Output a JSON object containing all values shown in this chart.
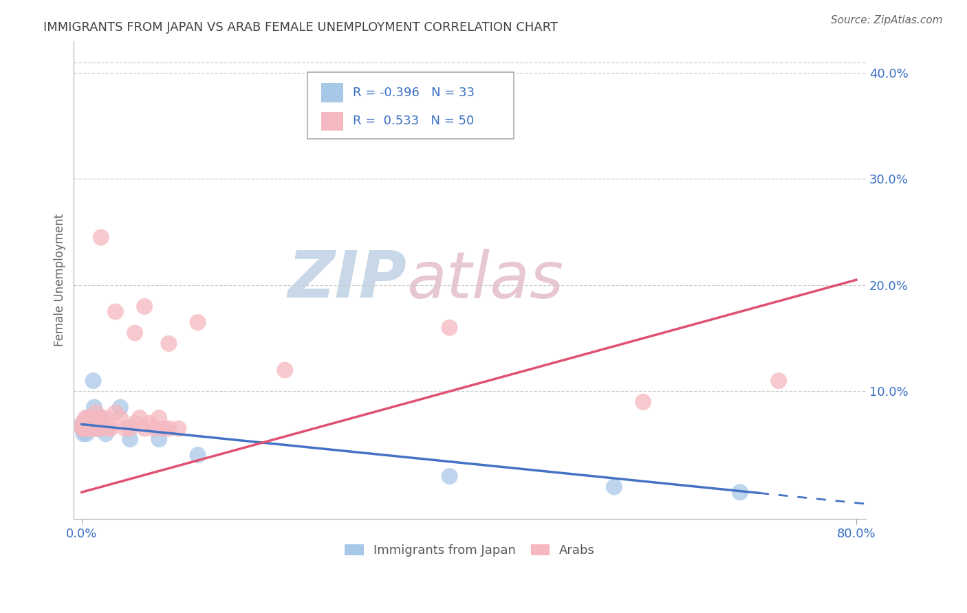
{
  "title": "IMMIGRANTS FROM JAPAN VS ARAB FEMALE UNEMPLOYMENT CORRELATION CHART",
  "source": "Source: ZipAtlas.com",
  "ylabel": "Female Unemployment",
  "R1": "-0.396",
  "N1": "33",
  "R2": "0.533",
  "N2": "50",
  "legend_label1": "Immigrants from Japan",
  "legend_label2": "Arabs",
  "blue_color": "#a8c8e8",
  "pink_color": "#f5b8c0",
  "blue_line_color": "#4472c4",
  "pink_line_color": "#e05070",
  "grid_color": "#cccccc",
  "watermark_zip_color": "#c8d8e8",
  "watermark_atlas_color": "#e8c8d0",
  "text_color": "#3a6fc4",
  "title_color": "#444444",
  "source_color": "#666666",
  "xlim": [
    0.0,
    0.8
  ],
  "ylim": [
    0.0,
    0.42
  ],
  "japan_x": [
    0.001,
    0.001,
    0.002,
    0.002,
    0.002,
    0.003,
    0.003,
    0.003,
    0.004,
    0.004,
    0.005,
    0.005,
    0.006,
    0.006,
    0.007,
    0.007,
    0.008,
    0.009,
    0.01,
    0.011,
    0.012,
    0.013,
    0.015,
    0.018,
    0.02,
    0.025,
    0.04,
    0.05,
    0.08,
    0.12,
    0.38,
    0.55,
    0.68
  ],
  "japan_y": [
    0.065,
    0.07,
    0.06,
    0.068,
    0.07,
    0.065,
    0.07,
    0.072,
    0.065,
    0.07,
    0.06,
    0.065,
    0.068,
    0.072,
    0.065,
    0.075,
    0.065,
    0.07,
    0.065,
    0.075,
    0.11,
    0.085,
    0.065,
    0.065,
    0.075,
    0.06,
    0.085,
    0.055,
    0.055,
    0.04,
    0.02,
    0.01,
    0.005
  ],
  "arab_x": [
    0.001,
    0.001,
    0.002,
    0.002,
    0.003,
    0.003,
    0.004,
    0.005,
    0.005,
    0.006,
    0.006,
    0.007,
    0.008,
    0.009,
    0.01,
    0.011,
    0.012,
    0.013,
    0.014,
    0.015,
    0.016,
    0.018,
    0.02,
    0.022,
    0.025,
    0.028,
    0.03,
    0.035,
    0.04,
    0.045,
    0.05,
    0.055,
    0.06,
    0.065,
    0.07,
    0.075,
    0.08,
    0.085,
    0.09,
    0.1,
    0.02,
    0.035,
    0.055,
    0.065,
    0.09,
    0.12,
    0.21,
    0.38,
    0.58,
    0.72
  ],
  "arab_y": [
    0.065,
    0.07,
    0.065,
    0.07,
    0.065,
    0.072,
    0.075,
    0.065,
    0.07,
    0.065,
    0.07,
    0.065,
    0.075,
    0.065,
    0.07,
    0.065,
    0.075,
    0.065,
    0.07,
    0.08,
    0.065,
    0.075,
    0.065,
    0.07,
    0.075,
    0.065,
    0.065,
    0.08,
    0.075,
    0.065,
    0.065,
    0.07,
    0.075,
    0.065,
    0.07,
    0.065,
    0.075,
    0.065,
    0.065,
    0.065,
    0.245,
    0.175,
    0.155,
    0.18,
    0.145,
    0.165,
    0.12,
    0.16,
    0.09,
    0.11
  ]
}
